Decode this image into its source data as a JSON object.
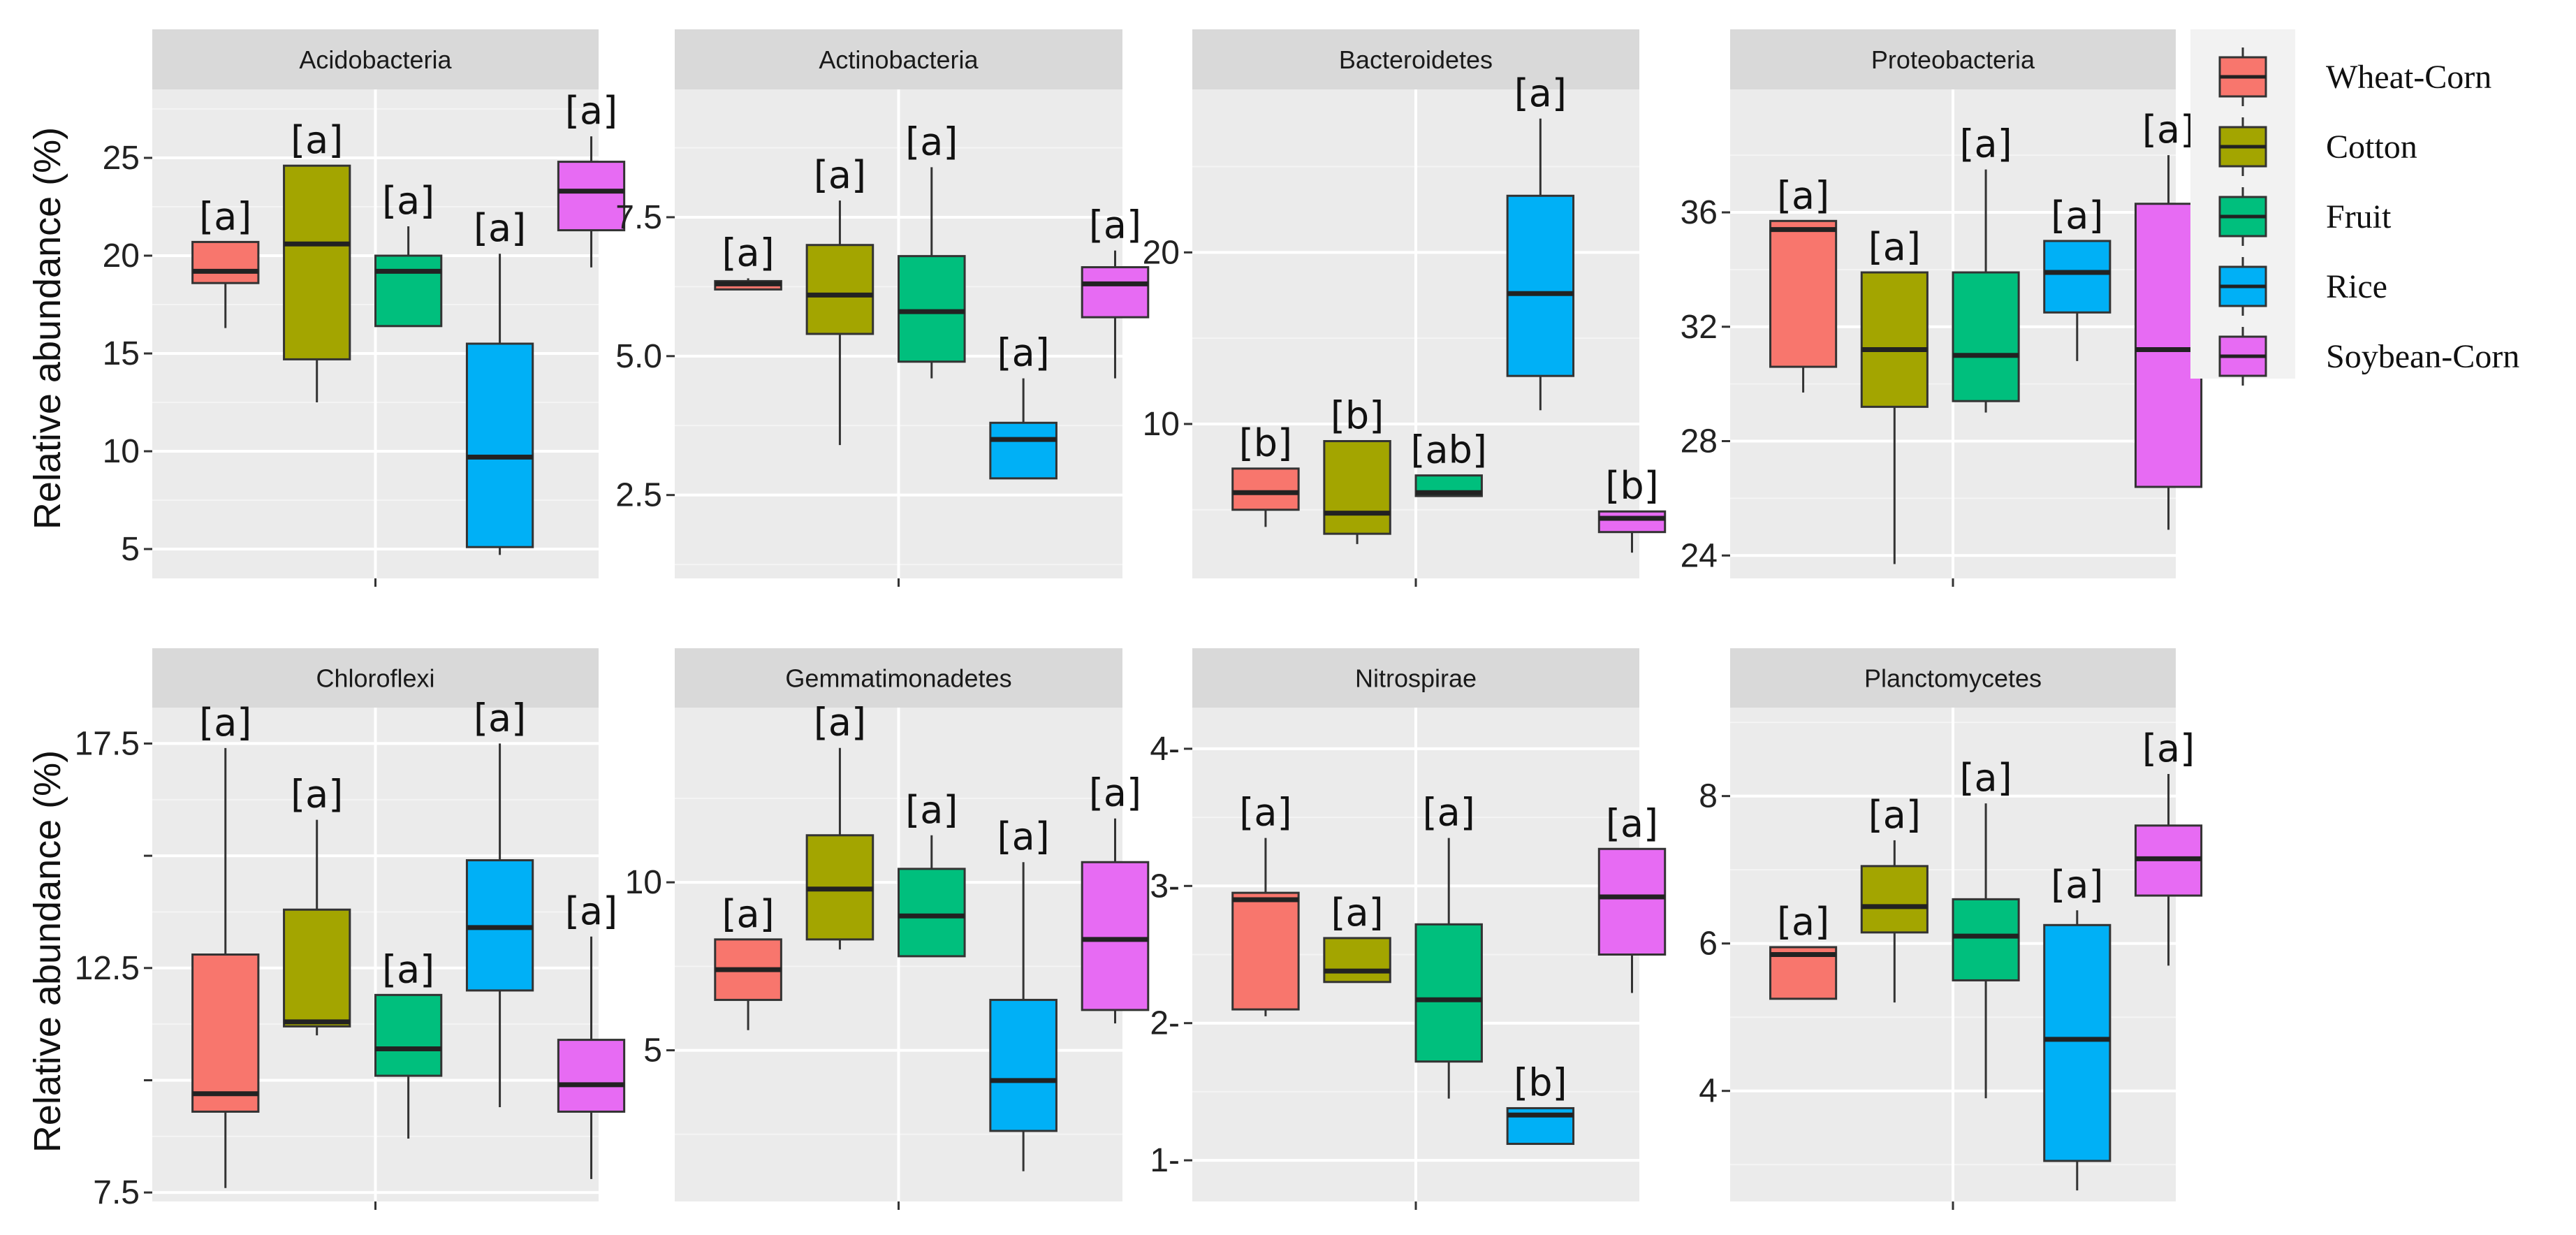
{
  "figure": {
    "y_axis_label": "Relative abundance (%)"
  },
  "legend": {
    "entries": [
      {
        "name": "Wheat-Corn",
        "color": "#F8766D"
      },
      {
        "name": "Cotton",
        "color": "#A3A500"
      },
      {
        "name": "Fruit",
        "color": "#00BF7D"
      },
      {
        "name": "Rice",
        "color": "#00B0F6"
      },
      {
        "name": "Soybean-Corn",
        "color": "#E76BF3"
      }
    ]
  },
  "chart_data": [
    {
      "type": "box",
      "title": "Acidobacteria",
      "ylabel": "Relative abundance (%)",
      "ylim": [
        3.5,
        28.5
      ],
      "yticks": [
        5,
        10,
        15,
        20,
        25
      ],
      "ytick_labels": [
        "5",
        "10",
        "15",
        "20",
        "25"
      ],
      "series": [
        {
          "name": "Wheat-Corn",
          "whisker_low": 16.3,
          "q1": 18.6,
          "median": 19.2,
          "q3": 20.7,
          "whisker_high": 20.7,
          "letter": "[a]"
        },
        {
          "name": "Cotton",
          "whisker_low": 12.5,
          "q1": 14.7,
          "median": 20.6,
          "q3": 24.6,
          "whisker_high": 24.6,
          "letter": "[a]"
        },
        {
          "name": "Fruit",
          "whisker_low": 16.4,
          "q1": 16.4,
          "median": 19.2,
          "q3": 20.0,
          "whisker_high": 21.5,
          "letter": "[a]"
        },
        {
          "name": "Rice",
          "whisker_low": 4.7,
          "q1": 5.1,
          "median": 9.7,
          "q3": 15.5,
          "whisker_high": 20.1,
          "letter": "[a]"
        },
        {
          "name": "Soybean-Corn",
          "whisker_low": 19.4,
          "q1": 21.3,
          "median": 23.3,
          "q3": 24.8,
          "whisker_high": 26.1,
          "letter": "[a]"
        }
      ]
    },
    {
      "type": "box",
      "title": "Actinobacteria",
      "ylabel": "",
      "ylim": [
        1.0,
        9.8
      ],
      "yticks": [
        2.5,
        5.0,
        7.5
      ],
      "ytick_labels": [
        "2.5",
        "5.0",
        "7.5"
      ],
      "series": [
        {
          "name": "Wheat-Corn",
          "whisker_low": 6.2,
          "q1": 6.2,
          "median": 6.3,
          "q3": 6.35,
          "whisker_high": 6.4,
          "letter": "[a]"
        },
        {
          "name": "Cotton",
          "whisker_low": 3.4,
          "q1": 5.4,
          "median": 6.1,
          "q3": 7.0,
          "whisker_high": 7.8,
          "letter": "[a]"
        },
        {
          "name": "Fruit",
          "whisker_low": 4.6,
          "q1": 4.9,
          "median": 5.8,
          "q3": 6.8,
          "whisker_high": 8.4,
          "letter": "[a]"
        },
        {
          "name": "Rice",
          "whisker_low": 2.8,
          "q1": 2.8,
          "median": 3.5,
          "q3": 3.8,
          "whisker_high": 4.6,
          "letter": "[a]"
        },
        {
          "name": "Soybean-Corn",
          "whisker_low": 4.6,
          "q1": 5.7,
          "median": 6.3,
          "q3": 6.6,
          "whisker_high": 6.9,
          "letter": "[a]"
        }
      ]
    },
    {
      "type": "box",
      "title": "Bacteroidetes",
      "ylabel": "",
      "ylim": [
        1.0,
        29.5
      ],
      "yticks": [
        10,
        20
      ],
      "ytick_labels": [
        "10",
        "20"
      ],
      "series": [
        {
          "name": "Wheat-Corn",
          "whisker_low": 4.0,
          "q1": 5.0,
          "median": 6.0,
          "q3": 7.4,
          "whisker_high": 7.4,
          "letter": "[b]"
        },
        {
          "name": "Cotton",
          "whisker_low": 3.0,
          "q1": 3.6,
          "median": 4.8,
          "q3": 9.0,
          "whisker_high": 9.0,
          "letter": "[b]"
        },
        {
          "name": "Fruit",
          "whisker_low": 5.8,
          "q1": 5.8,
          "median": 6.0,
          "q3": 7.0,
          "whisker_high": 7.0,
          "letter": "[ab]"
        },
        {
          "name": "Rice",
          "whisker_low": 10.8,
          "q1": 12.8,
          "median": 17.6,
          "q3": 23.3,
          "whisker_high": 27.8,
          "letter": "[a]"
        },
        {
          "name": "Soybean-Corn",
          "whisker_low": 2.5,
          "q1": 3.7,
          "median": 4.5,
          "q3": 4.9,
          "whisker_high": 4.9,
          "letter": "[b]"
        }
      ]
    },
    {
      "type": "box",
      "title": "Proteobacteria",
      "ylabel": "",
      "ylim": [
        23.2,
        40.3
      ],
      "yticks": [
        24,
        28,
        32,
        36
      ],
      "ytick_labels": [
        "24",
        "28",
        "32",
        "36"
      ],
      "series": [
        {
          "name": "Wheat-Corn",
          "whisker_low": 29.7,
          "q1": 30.6,
          "median": 35.4,
          "q3": 35.7,
          "whisker_high": 35.7,
          "letter": "[a]"
        },
        {
          "name": "Cotton",
          "whisker_low": 23.7,
          "q1": 29.2,
          "median": 31.2,
          "q3": 33.9,
          "whisker_high": 33.9,
          "letter": "[a]"
        },
        {
          "name": "Fruit",
          "whisker_low": 29.0,
          "q1": 29.4,
          "median": 31.0,
          "q3": 33.9,
          "whisker_high": 37.5,
          "letter": "[a]"
        },
        {
          "name": "Rice",
          "whisker_low": 30.8,
          "q1": 32.5,
          "median": 33.9,
          "q3": 35.0,
          "whisker_high": 35.0,
          "letter": "[a]"
        },
        {
          "name": "Soybean-Corn",
          "whisker_low": 24.9,
          "q1": 26.4,
          "median": 31.2,
          "q3": 36.3,
          "whisker_high": 38.0,
          "letter": "[a]"
        }
      ]
    },
    {
      "type": "box",
      "title": "Chloroflexi",
      "ylabel": "Relative abundance (%)",
      "ylim": [
        7.3,
        18.3
      ],
      "yticks": [
        7.5,
        10,
        12.5,
        15,
        17.5
      ],
      "ytick_labels": [
        "7.5",
        "",
        "12.5",
        "",
        "17.5"
      ],
      "series": [
        {
          "name": "Wheat-Corn",
          "whisker_low": 7.6,
          "q1": 9.3,
          "median": 9.7,
          "q3": 12.8,
          "whisker_high": 17.4,
          "letter": "[a]"
        },
        {
          "name": "Cotton",
          "whisker_low": 11.0,
          "q1": 11.2,
          "median": 11.3,
          "q3": 13.8,
          "whisker_high": 15.8,
          "letter": "[a]"
        },
        {
          "name": "Fruit",
          "whisker_low": 8.7,
          "q1": 10.1,
          "median": 10.7,
          "q3": 11.9,
          "whisker_high": 11.9,
          "letter": "[a]"
        },
        {
          "name": "Rice",
          "whisker_low": 9.4,
          "q1": 12.0,
          "median": 13.4,
          "q3": 14.9,
          "whisker_high": 17.5,
          "letter": "[a]"
        },
        {
          "name": "Soybean-Corn",
          "whisker_low": 7.8,
          "q1": 9.3,
          "median": 9.9,
          "q3": 10.9,
          "whisker_high": 13.2,
          "letter": "[a]"
        }
      ]
    },
    {
      "type": "box",
      "title": "Gemmatimonadetes",
      "ylabel": "",
      "ylim": [
        0.5,
        15.2
      ],
      "yticks": [
        5,
        10
      ],
      "ytick_labels": [
        "5",
        "10"
      ],
      "series": [
        {
          "name": "Wheat-Corn",
          "whisker_low": 5.6,
          "q1": 6.5,
          "median": 7.4,
          "q3": 8.3,
          "whisker_high": 8.3,
          "letter": "[a]"
        },
        {
          "name": "Cotton",
          "whisker_low": 8.0,
          "q1": 8.3,
          "median": 9.8,
          "q3": 11.4,
          "whisker_high": 14.0,
          "letter": "[a]"
        },
        {
          "name": "Fruit",
          "whisker_low": 7.8,
          "q1": 7.8,
          "median": 9.0,
          "q3": 10.4,
          "whisker_high": 11.4,
          "letter": "[a]"
        },
        {
          "name": "Rice",
          "whisker_low": 1.4,
          "q1": 2.6,
          "median": 4.1,
          "q3": 6.5,
          "whisker_high": 10.6,
          "letter": "[a]"
        },
        {
          "name": "Soybean-Corn",
          "whisker_low": 5.8,
          "q1": 6.2,
          "median": 8.3,
          "q3": 10.6,
          "whisker_high": 11.9,
          "letter": "[a]"
        }
      ]
    },
    {
      "type": "box",
      "title": "Nitrospirae",
      "ylabel": "",
      "ylim": [
        0.7,
        4.3
      ],
      "yticks": [
        1,
        2,
        3,
        4
      ],
      "ytick_labels": [
        "1-",
        "2-",
        "3-",
        "4-"
      ],
      "series": [
        {
          "name": "Wheat-Corn",
          "whisker_low": 2.05,
          "q1": 2.1,
          "median": 2.9,
          "q3": 2.95,
          "whisker_high": 3.35,
          "letter": "[a]"
        },
        {
          "name": "Cotton",
          "whisker_low": 2.3,
          "q1": 2.3,
          "median": 2.38,
          "q3": 2.62,
          "whisker_high": 2.62,
          "letter": "[a]"
        },
        {
          "name": "Fruit",
          "whisker_low": 1.45,
          "q1": 1.72,
          "median": 2.17,
          "q3": 2.72,
          "whisker_high": 3.35,
          "letter": "[a]"
        },
        {
          "name": "Rice",
          "whisker_low": 1.12,
          "q1": 1.12,
          "median": 1.33,
          "q3": 1.38,
          "whisker_high": 1.38,
          "letter": "[b]"
        },
        {
          "name": "Soybean-Corn",
          "whisker_low": 2.22,
          "q1": 2.5,
          "median": 2.92,
          "q3": 3.27,
          "whisker_high": 3.27,
          "letter": "[a]"
        }
      ]
    },
    {
      "type": "box",
      "title": "Planctomycetes",
      "ylabel": "",
      "ylim": [
        2.5,
        9.2
      ],
      "yticks": [
        4,
        6,
        8
      ],
      "ytick_labels": [
        "4",
        "6",
        "8"
      ],
      "series": [
        {
          "name": "Wheat-Corn",
          "whisker_low": 5.25,
          "q1": 5.25,
          "median": 5.85,
          "q3": 5.95,
          "whisker_high": 5.95,
          "letter": "[a]"
        },
        {
          "name": "Cotton",
          "whisker_low": 5.2,
          "q1": 6.15,
          "median": 6.5,
          "q3": 7.05,
          "whisker_high": 7.4,
          "letter": "[a]"
        },
        {
          "name": "Fruit",
          "whisker_low": 3.9,
          "q1": 5.5,
          "median": 6.1,
          "q3": 6.6,
          "whisker_high": 7.9,
          "letter": "[a]"
        },
        {
          "name": "Rice",
          "whisker_low": 2.65,
          "q1": 3.05,
          "median": 4.7,
          "q3": 6.25,
          "whisker_high": 6.45,
          "letter": "[a]"
        },
        {
          "name": "Soybean-Corn",
          "whisker_low": 5.7,
          "q1": 6.65,
          "median": 7.15,
          "q3": 7.6,
          "whisker_high": 8.3,
          "letter": "[a]"
        }
      ]
    }
  ]
}
